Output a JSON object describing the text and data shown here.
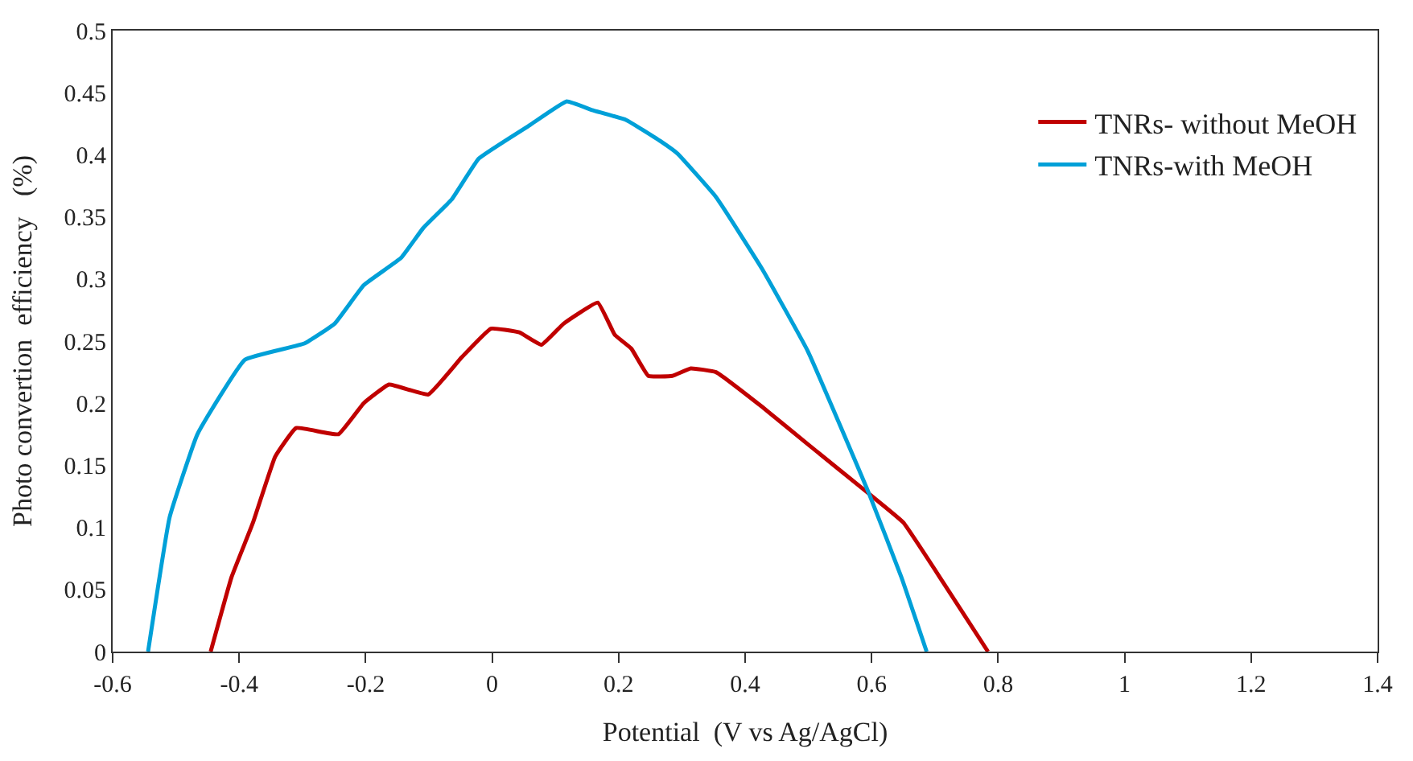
{
  "chart_data": {
    "type": "line",
    "xlabel": "Potential  (V vs Ag/AgCl)",
    "ylabel": "Photo convertion  efficiency   (%)",
    "xlim": [
      -0.6,
      1.4
    ],
    "xticks": [
      -0.6,
      -0.4,
      -0.2,
      0,
      0.2,
      0.4,
      0.6,
      0.8,
      1,
      1.2,
      1.4
    ],
    "ylim": [
      0,
      0.5
    ],
    "yticks": [
      0,
      0.05,
      0.1,
      0.15,
      0.2,
      0.25,
      0.3,
      0.35,
      0.4,
      0.45,
      0.5
    ],
    "legend": "top right",
    "marker": "none",
    "line_style": "solid",
    "series": [
      {
        "name": "TNRs- without MeOH",
        "color": "#c00000",
        "x": [
          -0.445,
          -0.412,
          -0.378,
          -0.343,
          -0.31,
          -0.243,
          -0.203,
          -0.163,
          -0.101,
          -0.048,
          -0.002,
          0.043,
          0.078,
          0.113,
          0.167,
          0.194,
          0.22,
          0.247,
          0.285,
          0.314,
          0.354,
          0.427,
          0.499,
          0.596,
          0.65,
          0.714,
          0.784
        ],
        "values": [
          0,
          0.06,
          0.104,
          0.157,
          0.18,
          0.175,
          0.2,
          0.215,
          0.207,
          0.237,
          0.26,
          0.257,
          0.247,
          0.264,
          0.281,
          0.255,
          0.244,
          0.222,
          0.222,
          0.228,
          0.225,
          0.197,
          0.167,
          0.127,
          0.104,
          0.055,
          0
        ]
      },
      {
        "name": "TNRs-with MeOH",
        "color": "#00a0d8",
        "x": [
          -0.544,
          -0.51,
          -0.466,
          -0.391,
          -0.297,
          -0.249,
          -0.203,
          -0.144,
          -0.109,
          -0.064,
          -0.021,
          0.06,
          0.118,
          0.158,
          0.212,
          0.266,
          0.293,
          0.354,
          0.427,
          0.499,
          0.596,
          0.647,
          0.687
        ],
        "values": [
          0,
          0.108,
          0.175,
          0.235,
          0.248,
          0.264,
          0.295,
          0.317,
          0.341,
          0.364,
          0.397,
          0.424,
          0.443,
          0.436,
          0.428,
          0.411,
          0.401,
          0.366,
          0.308,
          0.242,
          0.127,
          0.06,
          0
        ]
      }
    ]
  }
}
